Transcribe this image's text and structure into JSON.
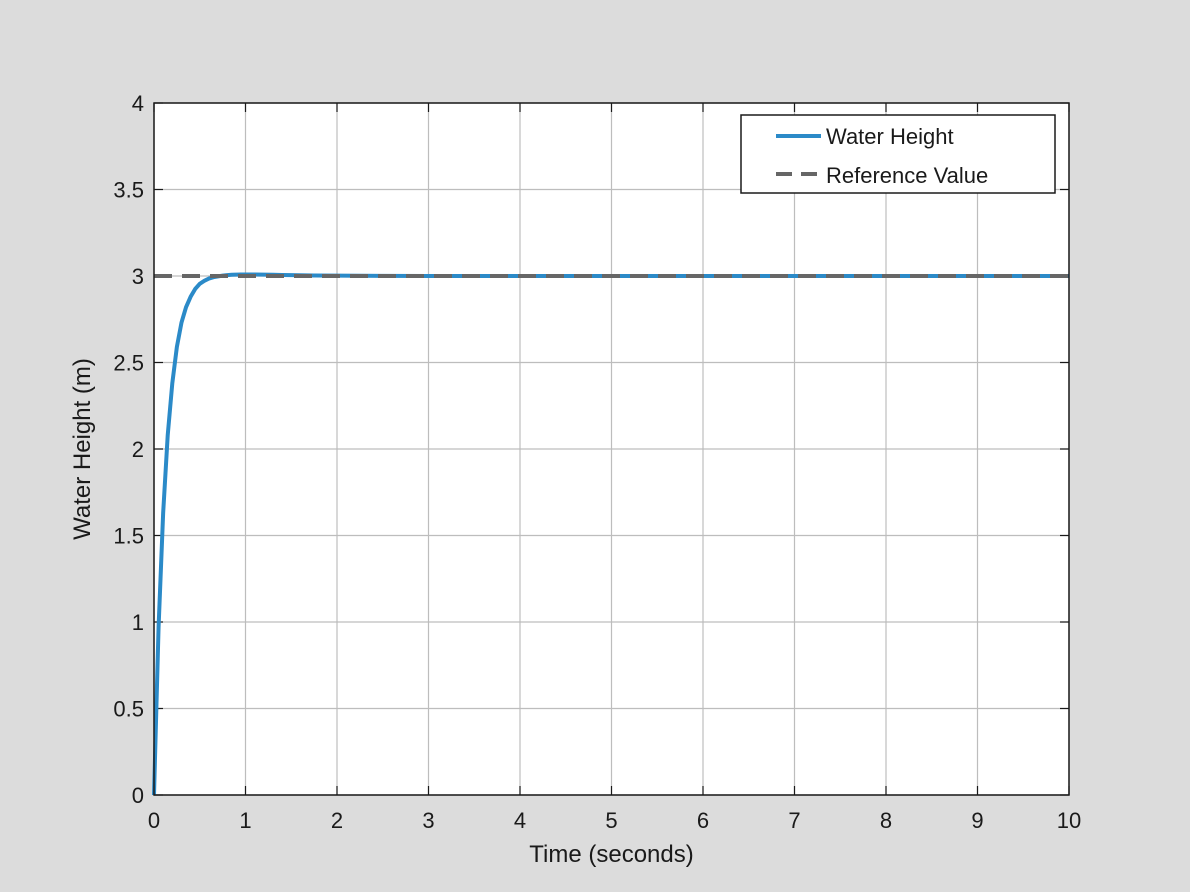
{
  "figure": {
    "background": "#dcdcdc",
    "axes_background": "#ffffff"
  },
  "chart_data": {
    "type": "line",
    "title": "",
    "xlabel": "Time (seconds)",
    "ylabel": "Water Height (m)",
    "xlim": [
      0,
      10
    ],
    "ylim": [
      0,
      4
    ],
    "xticks": [
      0,
      1,
      2,
      3,
      4,
      5,
      6,
      7,
      8,
      9,
      10
    ],
    "yticks": [
      0,
      0.5,
      1,
      1.5,
      2,
      2.5,
      3,
      3.5,
      4
    ],
    "xtick_labels": [
      "0",
      "1",
      "2",
      "3",
      "4",
      "5",
      "6",
      "7",
      "8",
      "9",
      "10"
    ],
    "ytick_labels": [
      "0",
      "0.5",
      "1",
      "1.5",
      "2",
      "2.5",
      "3",
      "3.5",
      "4"
    ],
    "grid": true,
    "legend_position": "top-right",
    "series": [
      {
        "name": "Water Height",
        "style": "solid",
        "color": "#2b8ac8",
        "x": [
          0,
          0.05,
          0.1,
          0.15,
          0.2,
          0.25,
          0.3,
          0.35,
          0.4,
          0.45,
          0.5,
          0.55,
          0.6,
          0.65,
          0.7,
          0.75,
          0.8,
          0.85,
          0.9,
          0.95,
          1.0,
          1.1,
          1.2,
          1.3,
          1.4,
          1.5,
          1.75,
          2.0,
          2.5,
          3.0,
          4.0,
          5.0,
          6.0,
          7.0,
          8.0,
          9.0,
          10.0
        ],
        "y": [
          0,
          0.97,
          1.63,
          2.08,
          2.38,
          2.59,
          2.73,
          2.82,
          2.88,
          2.925,
          2.955,
          2.972,
          2.985,
          2.993,
          2.998,
          3.002,
          3.005,
          3.007,
          3.008,
          3.009,
          3.009,
          3.009,
          3.008,
          3.007,
          3.006,
          3.005,
          3.003,
          3.002,
          3.001,
          3.0,
          3.0,
          3.0,
          3.0,
          3.0,
          3.0,
          3.0,
          3.0
        ]
      },
      {
        "name": "Reference Value",
        "style": "dashed",
        "color": "#666666",
        "x": [
          0,
          10
        ],
        "y": [
          3,
          3
        ]
      }
    ]
  }
}
